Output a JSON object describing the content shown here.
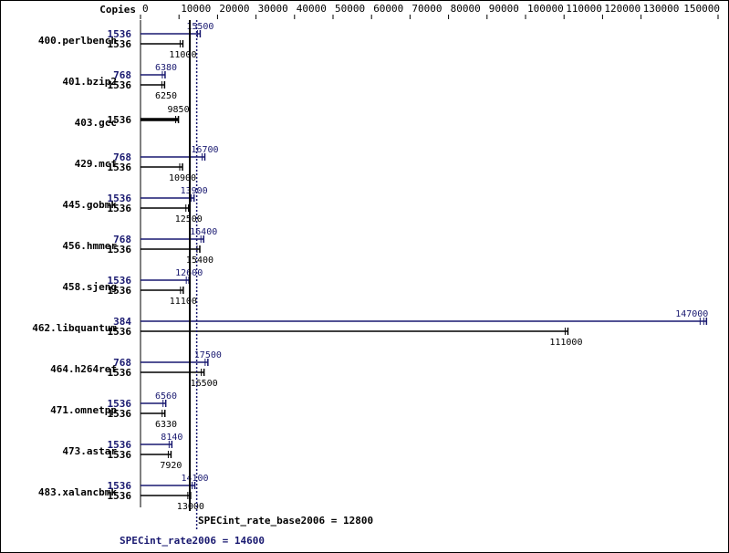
{
  "chart_data": {
    "type": "bar",
    "orientation": "horizontal",
    "axis_label": "Copies",
    "xlim": [
      0,
      150000
    ],
    "ticks": [
      0,
      10000,
      20000,
      30000,
      40000,
      50000,
      60000,
      70000,
      80000,
      90000,
      100000,
      110000,
      120000,
      130000,
      150000
    ],
    "tick_labels": [
      "0",
      "10000",
      "20000",
      "30000",
      "40000",
      "50000",
      "60000",
      "70000",
      "80000",
      "90000",
      "100000",
      "110000",
      "120000",
      "130000",
      "150000"
    ],
    "colors": {
      "peak": "#191970",
      "base": "#000000"
    },
    "benchmarks": [
      {
        "name": "400.perlbench",
        "peak_copies": "1536",
        "peak": 15500,
        "peak_label": "15500",
        "base_copies": "1536",
        "base": 11000,
        "base_label": "11000"
      },
      {
        "name": "401.bzip2",
        "peak_copies": "768",
        "peak": 6380,
        "peak_label": "6380",
        "base_copies": "1536",
        "base": 6250,
        "base_label": "6250"
      },
      {
        "name": "403.gcc",
        "peak_copies": null,
        "peak": null,
        "peak_label": null,
        "base_copies": "1536",
        "base": 9850,
        "base_label": "9850"
      },
      {
        "name": "429.mcf",
        "peak_copies": "768",
        "peak": 16700,
        "peak_label": "16700",
        "base_copies": "1536",
        "base": 10900,
        "base_label": "10900"
      },
      {
        "name": "445.gobmk",
        "peak_copies": "1536",
        "peak": 13900,
        "peak_label": "13900",
        "base_copies": "1536",
        "base": 12500,
        "base_label": "12500"
      },
      {
        "name": "456.hmmer",
        "peak_copies": "768",
        "peak": 16400,
        "peak_label": "16400",
        "base_copies": "1536",
        "base": 15400,
        "base_label": "15400"
      },
      {
        "name": "458.sjeng",
        "peak_copies": "1536",
        "peak": 12600,
        "peak_label": "12600",
        "base_copies": "1536",
        "base": 11100,
        "base_label": "11100"
      },
      {
        "name": "462.libquantum",
        "peak_copies": "384",
        "peak": 147000,
        "peak_label": "147000",
        "base_copies": "1536",
        "base": 111000,
        "base_label": "111000"
      },
      {
        "name": "464.h264ref",
        "peak_copies": "768",
        "peak": 17500,
        "peak_label": "17500",
        "base_copies": "1536",
        "base": 16500,
        "base_label": "16500"
      },
      {
        "name": "471.omnetpp",
        "peak_copies": "1536",
        "peak": 6560,
        "peak_label": "6560",
        "base_copies": "1536",
        "base": 6330,
        "base_label": "6330"
      },
      {
        "name": "473.astar",
        "peak_copies": "1536",
        "peak": 8140,
        "peak_label": "8140",
        "base_copies": "1536",
        "base": 7920,
        "base_label": "7920"
      },
      {
        "name": "483.xalancbmk",
        "peak_copies": "1536",
        "peak": 14100,
        "peak_label": "14100",
        "base_copies": "1536",
        "base": 13000,
        "base_label": "13000"
      }
    ],
    "base_overall": 12800,
    "peak_overall": 14600,
    "base_overall_label": "SPECint_rate_base2006 = 12800",
    "peak_overall_label": "SPECint_rate2006 = 14600"
  }
}
